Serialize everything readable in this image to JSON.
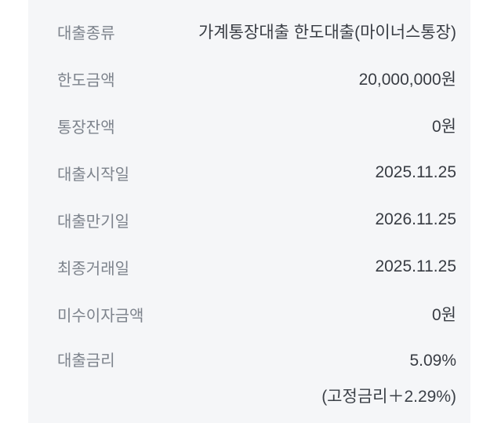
{
  "screen_title": "loan-account-details",
  "colors": {
    "panel_background": "#f5f6f8",
    "page_margin": "#ffffff",
    "label_gray": "#7d838c",
    "value_dark": "#383c43"
  },
  "rows": [
    {
      "label": "대출종류",
      "value": "가계통장대출 한도대출(마이너스통장)"
    },
    {
      "label": "한도금액",
      "value": "20,000,000원"
    },
    {
      "label": "통장잔액",
      "value": "0원"
    },
    {
      "label": "대출시작일",
      "value": "2025.11.25"
    },
    {
      "label": "대출만기일",
      "value": "2026.11.25"
    },
    {
      "label": "최종거래일",
      "value": "2025.11.25"
    },
    {
      "label": "미수이자금액",
      "value": "0원"
    },
    {
      "label": "대출금리",
      "value": "5.09%",
      "subvalue": "(고정금리＋2.29%)"
    }
  ]
}
